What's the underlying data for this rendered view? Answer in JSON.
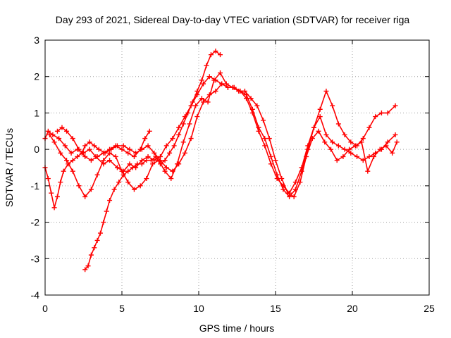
{
  "chart_data": {
    "type": "scatter",
    "title": "Day 293 of 2021, Sidereal Day-to-day VTEC variation (SDTVAR) for receiver riga",
    "xlabel": "GPS time / hours",
    "ylabel": "SDTVAR / TECUs",
    "xlim": [
      0,
      25
    ],
    "ylim": [
      -4,
      3
    ],
    "xticks": [
      0,
      5,
      10,
      15,
      20,
      25
    ],
    "yticks": [
      -4,
      -3,
      -2,
      -1,
      0,
      1,
      2,
      3
    ],
    "grid": true,
    "marker": "+",
    "color": "#ff0000",
    "series": [
      {
        "name": "track-1",
        "x": [
          0.0,
          0.2,
          0.5,
          0.9,
          1.3,
          1.7,
          2.1,
          2.5,
          2.9,
          3.3,
          3.8,
          4.2,
          4.7,
          5.1,
          5.5,
          5.9,
          6.3,
          6.7,
          7.1,
          7.5,
          7.9,
          8.3,
          8.7,
          9.1,
          9.5,
          9.9,
          10.3,
          10.7,
          11.1,
          11.5,
          11.9,
          12.3,
          12.7,
          13.1,
          13.5,
          13.9,
          14.3,
          14.7,
          15.1,
          15.5,
          15.9,
          16.3,
          16.7,
          17.1,
          17.5,
          17.9,
          18.3,
          18.7,
          19.1,
          19.5,
          19.9,
          20.3,
          20.7,
          21.1,
          21.5,
          21.9,
          22.3,
          22.8
        ],
        "y": [
          0.3,
          0.5,
          0.4,
          0.3,
          0.1,
          -0.1,
          0.0,
          -0.1,
          0.0,
          -0.2,
          -0.4,
          -0.3,
          -0.5,
          -0.6,
          -0.4,
          -0.5,
          -0.3,
          -0.2,
          -0.3,
          -0.2,
          0.1,
          0.3,
          0.6,
          0.9,
          1.2,
          1.5,
          1.8,
          2.0,
          1.9,
          1.8,
          1.7,
          1.7,
          1.6,
          1.5,
          1.1,
          0.6,
          0.3,
          -0.2,
          -0.7,
          -1.1,
          -1.3,
          -1.1,
          -0.6,
          0.0,
          0.6,
          0.9,
          0.4,
          0.2,
          0.1,
          0.0,
          -0.1,
          -0.2,
          -0.3,
          -0.2,
          -0.1,
          0.0,
          0.2,
          0.4
        ]
      },
      {
        "name": "track-2",
        "x": [
          0.0,
          0.2,
          0.4,
          0.6,
          0.8,
          1.0,
          1.2,
          1.5,
          1.8,
          2.1,
          2.4,
          2.6,
          2.9,
          3.2,
          3.5,
          3.9,
          4.3,
          4.7,
          5.1,
          5.5,
          5.9,
          6.3,
          6.7,
          7.1,
          7.5,
          7.9,
          8.3,
          8.7,
          9.1,
          9.5,
          9.9,
          10.3,
          10.7,
          11.1,
          11.5,
          11.9,
          12.3,
          12.7,
          13.1,
          13.5,
          13.9,
          14.3,
          14.7,
          15.1,
          15.5,
          15.9,
          16.3,
          16.7,
          17.1,
          17.5,
          17.9,
          18.3,
          18.7,
          19.1,
          19.5,
          19.9,
          20.3,
          20.7,
          21.1,
          21.5,
          21.9,
          22.3,
          22.8
        ],
        "y": [
          -0.5,
          -0.8,
          -1.2,
          -1.6,
          -1.3,
          -0.9,
          -0.6,
          -0.4,
          -0.3,
          -0.2,
          -0.1,
          0.1,
          0.2,
          0.1,
          0.0,
          -0.1,
          0.0,
          0.1,
          0.1,
          0.0,
          -0.1,
          0.0,
          0.1,
          -0.1,
          -0.3,
          -0.5,
          -0.6,
          -0.4,
          -0.1,
          0.3,
          0.9,
          1.3,
          1.5,
          1.6,
          1.8,
          1.7,
          1.7,
          1.6,
          1.4,
          1.0,
          0.5,
          0.1,
          -0.4,
          -0.8,
          -1.0,
          -1.2,
          -0.9,
          -0.5,
          0.1,
          0.6,
          1.1,
          1.6,
          1.2,
          0.7,
          0.4,
          0.2,
          0.1,
          0.3,
          0.6,
          0.9,
          1.0,
          1.0,
          1.2
        ]
      },
      {
        "name": "track-3",
        "x": [
          2.6,
          2.8,
          3.0,
          3.2,
          3.4,
          3.6,
          3.8,
          4.0,
          4.2,
          4.5,
          4.8,
          5.1,
          5.4,
          5.7,
          6.0,
          6.3,
          6.6,
          6.9,
          7.2,
          7.5,
          7.8,
          8.1,
          8.4,
          8.7,
          9.0,
          9.3,
          9.6,
          9.9,
          10.2,
          10.5,
          10.8,
          11.1,
          11.4
        ],
        "y": [
          -3.3,
          -3.2,
          -2.9,
          -2.7,
          -2.5,
          -2.3,
          -2.0,
          -1.7,
          -1.4,
          -1.1,
          -0.9,
          -0.7,
          -0.6,
          -0.5,
          -0.4,
          -0.4,
          -0.3,
          -0.3,
          -0.2,
          -0.4,
          -0.3,
          -0.1,
          0.1,
          0.4,
          0.7,
          1.0,
          1.3,
          1.6,
          1.9,
          2.3,
          2.6,
          2.7,
          2.6
        ]
      },
      {
        "name": "track-4",
        "x": [
          0.3,
          0.6,
          1.0,
          1.4,
          1.8,
          2.2,
          2.6,
          3.0,
          3.4,
          3.8,
          4.2,
          4.6,
          5.0,
          5.4,
          5.8,
          6.2,
          6.6,
          7.0,
          7.4,
          7.8,
          8.2,
          8.6,
          9.0,
          9.4,
          9.8,
          10.2,
          10.6,
          11.0,
          11.4,
          11.8,
          12.2,
          12.6,
          13.0,
          13.4,
          13.8,
          14.2,
          14.6,
          15.0,
          15.4,
          15.8,
          16.2,
          16.6,
          17.0,
          17.4,
          17.8,
          18.2,
          18.6,
          19.0,
          19.4,
          19.8,
          20.2,
          20.6,
          21.0,
          21.4,
          21.8,
          22.2,
          22.6,
          22.9
        ],
        "y": [
          0.4,
          0.2,
          -0.1,
          -0.3,
          -0.6,
          -1.0,
          -1.3,
          -1.1,
          -0.7,
          -0.3,
          -0.1,
          -0.2,
          -0.6,
          -0.9,
          -1.1,
          -1.0,
          -0.8,
          -0.4,
          -0.3,
          -0.6,
          -0.8,
          -0.4,
          0.2,
          0.7,
          1.2,
          1.4,
          1.3,
          1.9,
          2.1,
          1.8,
          1.7,
          1.6,
          1.6,
          1.4,
          1.2,
          0.8,
          0.3,
          -0.3,
          -0.8,
          -1.2,
          -1.3,
          -0.9,
          -0.2,
          0.3,
          0.5,
          0.2,
          0.0,
          -0.3,
          -0.2,
          0.0,
          0.1,
          0.2,
          -0.6,
          -0.2,
          0.0,
          0.1,
          -0.1,
          0.2
        ]
      },
      {
        "name": "track-5",
        "x": [
          0.8,
          1.1,
          1.4,
          1.8,
          2.2,
          2.6,
          3.0,
          3.4,
          3.8,
          4.2,
          4.6,
          5.0,
          5.4,
          5.8,
          6.2,
          6.5,
          6.8
        ],
        "y": [
          0.5,
          0.6,
          0.5,
          0.3,
          0.0,
          -0.2,
          -0.3,
          -0.2,
          -0.1,
          0.0,
          0.1,
          0.0,
          -0.1,
          -0.2,
          0.0,
          0.3,
          0.5
        ]
      }
    ]
  }
}
